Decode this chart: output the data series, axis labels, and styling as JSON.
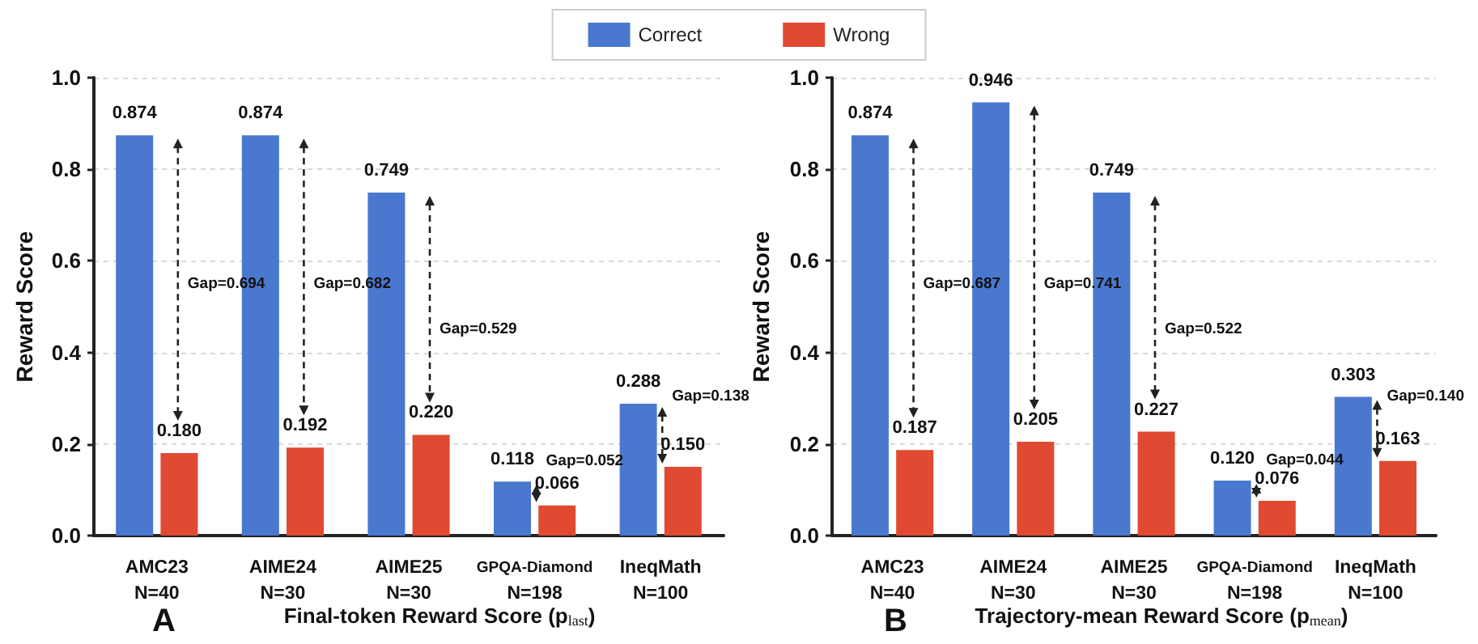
{
  "chart_data": [
    {
      "type": "bar",
      "title": "Final-token Reward Score (p$_{last}$)",
      "ylabel": "Reward Score",
      "categories": [
        "AMC23\nN=40",
        "AIME24\nN=30",
        "AIME25\nN=30",
        "GPQA-Diamond\nN=198",
        "IneqMath\nN=100"
      ],
      "series": [
        {
          "name": "Correct",
          "color": "#4a78cf",
          "values": [
            0.874,
            0.874,
            0.749,
            0.118,
            0.288
          ],
          "value_labels": [
            "0.874",
            "0.874",
            "0.749",
            "0.118",
            "0.288"
          ]
        },
        {
          "name": "Wrong",
          "color": "#e04a32",
          "values": [
            0.18,
            0.192,
            0.22,
            0.066,
            0.15
          ],
          "value_labels": [
            "0.180",
            "0.192",
            "0.220",
            "0.066",
            "0.150"
          ]
        }
      ],
      "ylim": [
        0,
        1
      ],
      "yticks": [
        {
          "value": 0,
          "label": "0.0"
        },
        {
          "value": 0.2,
          "label": "0.2"
        },
        {
          "value": 0.4,
          "label": "0.4"
        },
        {
          "value": 0.6,
          "label": "0.6"
        },
        {
          "value": 0.8,
          "label": "0.8"
        },
        {
          "value": 1,
          "label": "1.0"
        }
      ],
      "grid": "y",
      "legend": "top",
      "annotations": [
        "A",
        {
          "text": "Gap=0.694",
          "x": "AMC23\nN=40",
          "y": 0.55
        },
        {
          "text": "Gap=0.682",
          "x": "AIME24\nN=30",
          "y": 0.55
        },
        {
          "text": "Gap=0.529",
          "x": "AIME25\nN=30",
          "y": 0.45
        },
        {
          "text": "Gap=0.052",
          "x": "GPQA-Diamond\nN=198",
          "y": 0.118
        },
        {
          "text": "Gap=0.138",
          "x": "IneqMath\nN=100",
          "y": 0.26
        }
      ]
    },
    {
      "type": "bar",
      "title": "Trajectory-mean Reward Score (p$_{mean}$)",
      "ylabel": "Reward Score",
      "categories": [
        "AMC23\nN=40",
        "AIME24\nN=30",
        "AIME25\nN=30",
        "GPQA-Diamond\nN=198",
        "IneqMath\nN=100"
      ],
      "series": [
        {
          "color": "#4a78cf",
          "values": [
            0.874,
            0.946,
            0.749,
            0.12,
            0.303
          ],
          "value_labels": [
            "0.874",
            "0.946",
            "0.749",
            "0.120",
            "0.303"
          ]
        },
        {
          "color": "#e04a32",
          "values": [
            0.187,
            0.205,
            0.227,
            0.076,
            0.163
          ],
          "value_labels": [
            "0.187",
            "0.205",
            "0.227",
            "0.076",
            "0.163"
          ]
        }
      ],
      "ylim": [
        0,
        1
      ],
      "yticks": [
        {
          "value": 0,
          "label": "0.0"
        },
        {
          "value": 0.2,
          "label": "0.2"
        },
        {
          "value": 0.4,
          "label": "0.4"
        },
        {
          "value": 0.6,
          "label": "0.6"
        },
        {
          "value": 0.8,
          "label": "0.8"
        },
        {
          "value": 1,
          "label": "1.0"
        }
      ],
      "grid": "y",
      "legend": false,
      "annotations": [
        "B",
        {
          "text": "Gap=0.687",
          "x": "AMC23\nN=40",
          "y": 0.55
        },
        {
          "text": "Gap=0.741",
          "x": "AIME24\nN=30",
          "y": 0.55
        },
        {
          "text": "Gap=0.522",
          "x": "AIME25\nN=30",
          "y": 0.45
        },
        {
          "text": "Gap=0.044",
          "x": "GPQA-Diamond\nN=198",
          "y": 0.12
        },
        {
          "text": "Gap=0.140",
          "x": "IneqMath\nN=100",
          "y": 0.26
        }
      ]
    }
  ]
}
